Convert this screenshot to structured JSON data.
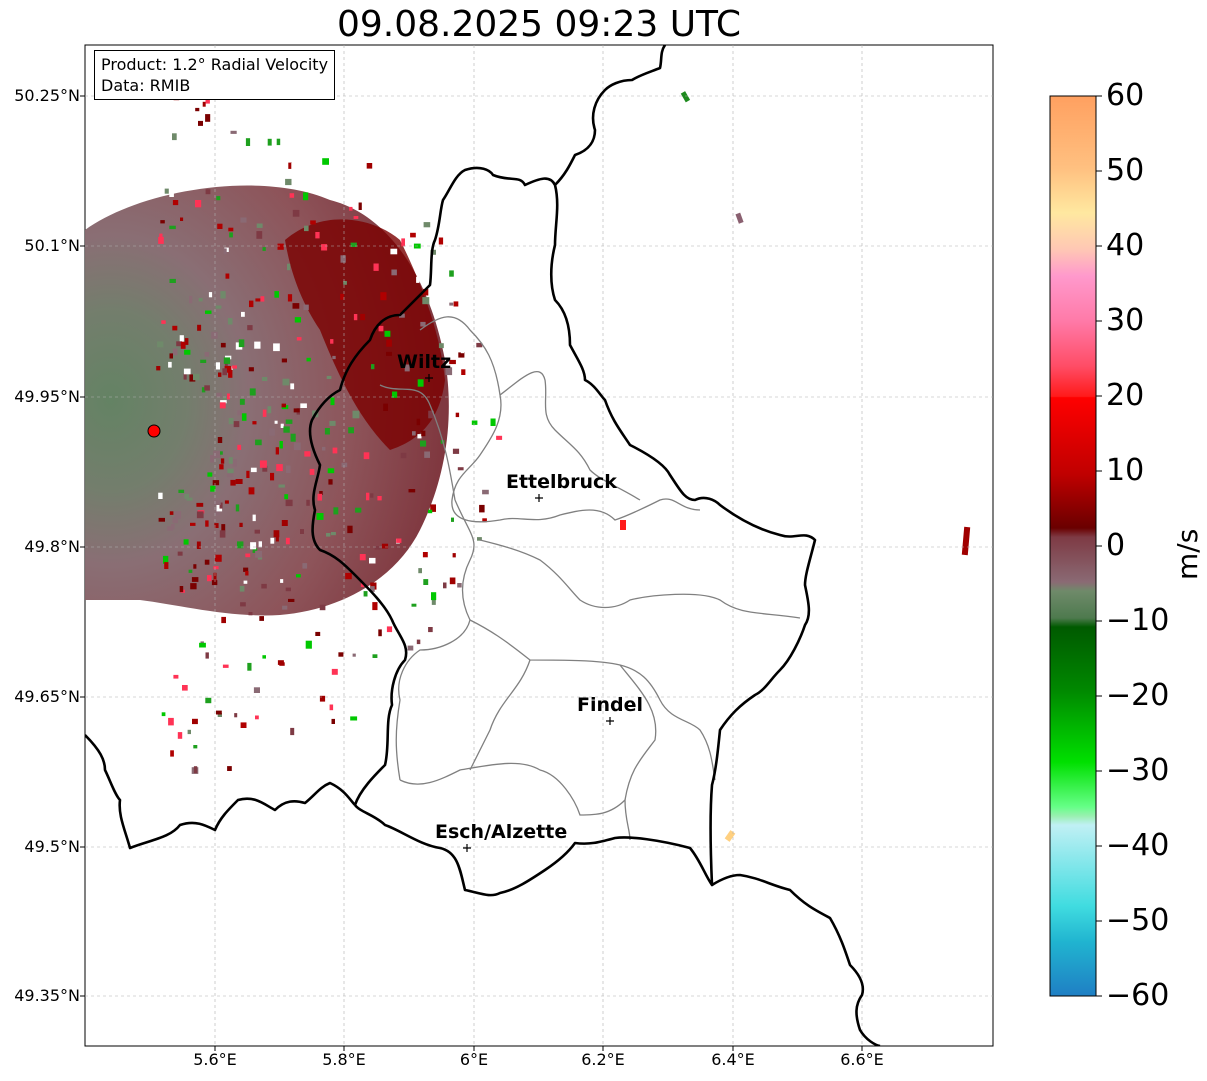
{
  "title": "09.08.2025 09:23 UTC",
  "info": {
    "product": "Product: 1.2° Radial Velocity",
    "source": "Data: RMIB"
  },
  "axes": {
    "lat_ticks": [
      "50.25°N",
      "50.1°N",
      "49.95°N",
      "49.8°N",
      "49.65°N",
      "49.5°N",
      "49.35°N"
    ],
    "lon_ticks": [
      "5.6°E",
      "5.8°E",
      "6°E",
      "6.2°E",
      "6.4°E",
      "6.6°E"
    ],
    "lat_range": [
      49.3,
      50.3
    ],
    "lon_range": [
      5.4,
      6.8
    ],
    "grid": true
  },
  "colorbar": {
    "label": "m/s",
    "ticks": [
      "60",
      "50",
      "40",
      "30",
      "20",
      "10",
      "0",
      "−10",
      "−20",
      "−30",
      "−40",
      "−50",
      "−60"
    ],
    "min": -60,
    "max": 60
  },
  "cities": [
    {
      "name": "Wiltz",
      "lat": 49.966,
      "lon": 5.932
    },
    {
      "name": "Ettelbruck",
      "lat": 49.848,
      "lon": 6.104
    },
    {
      "name": "Findel",
      "lat": 49.626,
      "lon": 6.212
    },
    {
      "name": "Esch/Alzette",
      "lat": 49.496,
      "lon": 5.985
    }
  ],
  "radar_site": {
    "lat": 49.914,
    "lon": 5.505
  },
  "colors": {
    "border": "#000000",
    "canton_lines": "#808080",
    "radar_marker": "#ff0000"
  }
}
